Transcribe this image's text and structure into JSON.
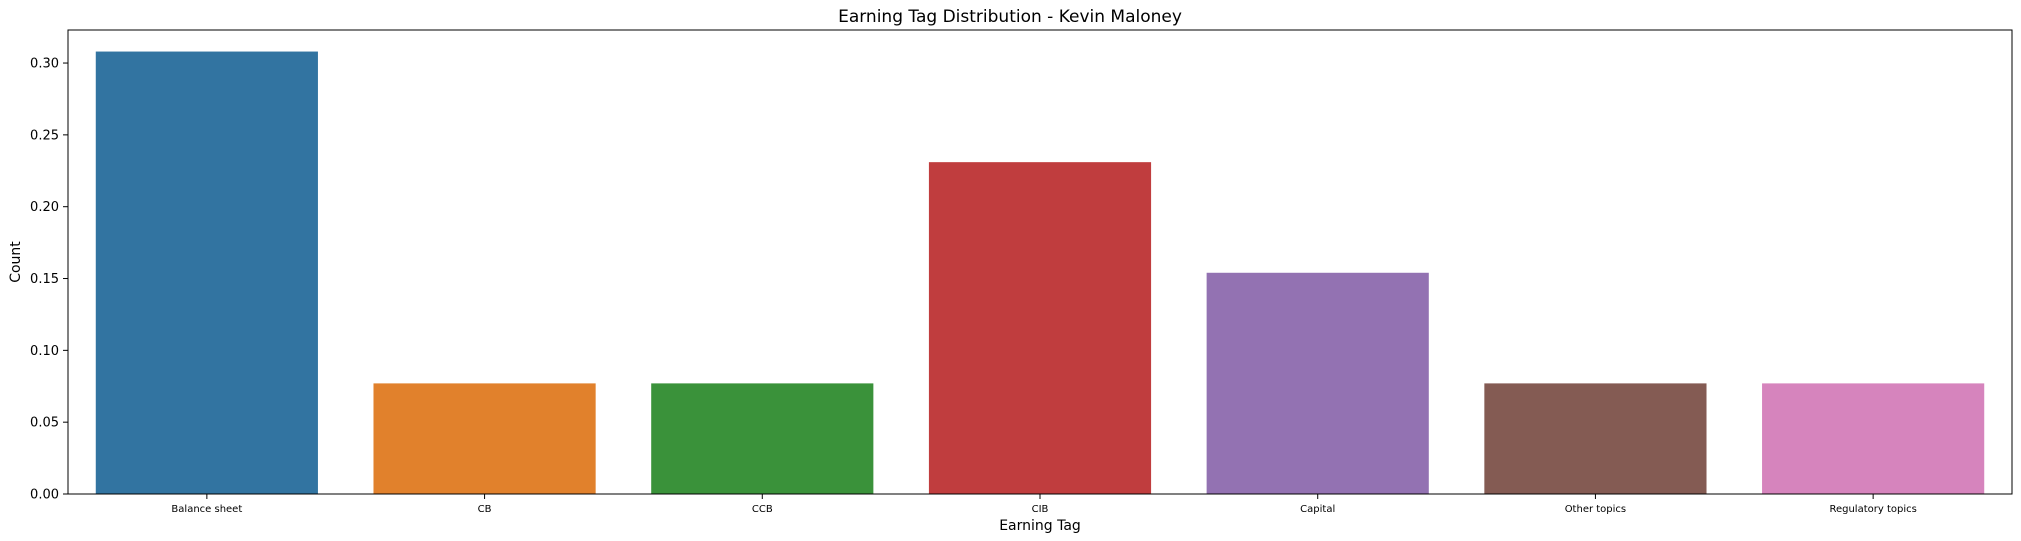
{
  "chart_data": {
    "type": "bar",
    "title": "Earning Tag Distribution - Kevin Maloney",
    "xlabel": "Earning Tag",
    "ylabel": "Count",
    "categories": [
      "Balance sheet",
      "CB",
      "CCB",
      "CIB",
      "Capital",
      "Other topics",
      "Regulatory topics"
    ],
    "values": [
      0.308,
      0.077,
      0.077,
      0.231,
      0.154,
      0.077,
      0.077
    ],
    "colors": [
      "#3274a1",
      "#e1812c",
      "#3a923a",
      "#c03d3e",
      "#9372b2",
      "#845b53",
      "#d684bd"
    ],
    "ylim": [
      0,
      0.323
    ],
    "yticks": [
      0.0,
      0.05,
      0.1,
      0.15,
      0.2,
      0.25,
      0.3
    ],
    "ytick_labels": [
      "0.00",
      "0.05",
      "0.10",
      "0.15",
      "0.20",
      "0.25",
      "0.30"
    ],
    "grid": false,
    "legend": "none"
  }
}
